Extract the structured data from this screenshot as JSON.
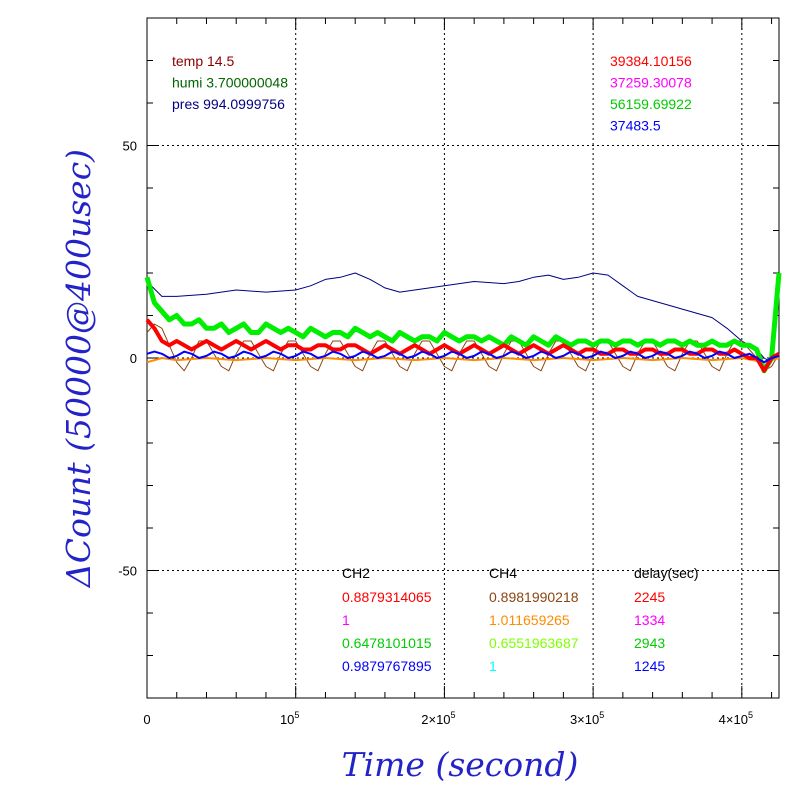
{
  "chart_data": {
    "type": "line",
    "title": "",
    "xlabel": "Time (second)",
    "ylabel": "ΔCount (50000@400usec)",
    "xlim": [
      0,
      425000
    ],
    "ylim": [
      -80,
      80
    ],
    "grid": true,
    "x_ticks": [
      {
        "value": 0,
        "base": "0",
        "exp": ""
      },
      {
        "value": 100000,
        "base": "10",
        "exp": "5"
      },
      {
        "value": 200000,
        "base": "2×10",
        "exp": "5"
      },
      {
        "value": 300000,
        "base": "3×10",
        "exp": "5"
      },
      {
        "value": 400000,
        "base": "4×10",
        "exp": "5"
      }
    ],
    "y_ticks": [
      {
        "value": 50,
        "label": "50"
      },
      {
        "value": 0,
        "label": "0"
      },
      {
        "value": -50,
        "label": "-50"
      }
    ],
    "env_labels": [
      {
        "text": "temp 14.5",
        "color": "#8b0000"
      },
      {
        "text": "humi 3.700000048",
        "color": "#006400"
      },
      {
        "text": "pres 994.0999756",
        "color": "#000080"
      }
    ],
    "count_labels": [
      {
        "text": "39384.10156",
        "color": "#ff0000"
      },
      {
        "text": "37259.30078",
        "color": "#ff00ff"
      },
      {
        "text": "56159.69922",
        "color": "#00cc00"
      },
      {
        "text": "37483.5",
        "color": "#0000ff"
      }
    ],
    "calib_table": {
      "headers": [
        "CH2",
        "CH4",
        "delay(sec)"
      ],
      "rows": [
        {
          "ch2": "0.8879314065",
          "ch2_color": "#ff0000",
          "ch4": "0.8981990218",
          "ch4_color": "#8b4513",
          "delay": "2245",
          "delay_color": "#ff0000"
        },
        {
          "ch2": "1",
          "ch2_color": "#ff00ff",
          "ch4": "1.011659265",
          "ch4_color": "#ff8c00",
          "delay": "1334",
          "delay_color": "#ff00ff"
        },
        {
          "ch2": "0.6478101015",
          "ch2_color": "#00cc00",
          "ch4": "0.6551963687",
          "ch4_color": "#7fff00",
          "delay": "2943",
          "delay_color": "#00cc00"
        },
        {
          "ch2": "0.9879767895",
          "ch2_color": "#0000ff",
          "ch4": "1",
          "ch4_color": "#00ffff",
          "delay": "1245",
          "delay_color": "#0000ff"
        }
      ]
    },
    "series": [
      {
        "color": "#000080",
        "width": 1,
        "x": [
          0,
          10000,
          20000,
          40000,
          60000,
          80000,
          100000,
          110000,
          120000,
          130000,
          140000,
          150000,
          160000,
          170000,
          180000,
          200000,
          220000,
          240000,
          250000,
          260000,
          270000,
          280000,
          290000,
          300000,
          310000,
          320000,
          330000,
          340000,
          350000,
          360000,
          370000,
          380000,
          390000,
          400000,
          410000,
          415000,
          420000,
          425000
        ],
        "y": [
          18,
          14.5,
          14.5,
          15,
          16,
          15.5,
          16,
          17,
          18.5,
          19,
          20,
          18.5,
          16.5,
          15.5,
          16,
          17,
          18,
          17.5,
          18,
          19,
          19.5,
          18.5,
          19,
          20,
          19.5,
          17,
          14.5,
          13.5,
          12.5,
          11.5,
          10.5,
          9.5,
          7,
          4,
          2,
          0,
          -1,
          20
        ]
      },
      {
        "color": "#8b4513",
        "width": 1,
        "x": [
          0,
          5000,
          10000,
          15000,
          20000,
          25000,
          30000,
          35000,
          40000,
          45000,
          50000,
          55000,
          60000,
          65000,
          70000,
          75000,
          80000,
          85000,
          90000,
          95000,
          100000,
          105000,
          110000,
          115000,
          120000,
          125000,
          130000,
          135000,
          140000,
          145000,
          150000,
          155000,
          160000,
          165000,
          170000,
          175000,
          180000,
          185000,
          190000,
          195000,
          200000,
          205000,
          210000,
          215000,
          220000,
          225000,
          230000,
          235000,
          240000,
          245000,
          250000,
          255000,
          260000,
          265000,
          270000,
          275000,
          280000,
          285000,
          290000,
          295000,
          300000,
          305000,
          310000,
          315000,
          320000,
          325000,
          330000,
          335000,
          340000,
          345000,
          350000,
          355000,
          360000,
          365000,
          370000,
          375000,
          380000,
          385000,
          390000,
          395000,
          400000,
          405000,
          410000,
          415000,
          420000,
          425000
        ],
        "y": [
          6,
          8,
          7,
          3,
          -1,
          -3,
          0,
          4,
          4,
          1,
          -2,
          -3,
          1,
          4,
          4,
          1,
          -2,
          -3,
          1,
          4,
          4,
          1,
          -2,
          -3,
          1,
          4,
          4,
          1,
          -2,
          -3,
          1,
          4,
          4,
          1,
          -2,
          -3,
          1,
          4,
          4,
          1,
          -2,
          -3,
          1,
          4,
          4,
          1,
          -2,
          -3,
          1,
          4,
          4,
          1,
          -2,
          -3,
          1,
          4,
          4,
          1,
          -2,
          -3,
          1,
          4,
          4,
          1,
          -2,
          -3,
          1,
          4,
          4,
          1,
          -2,
          -3,
          1,
          4,
          4,
          1,
          -2,
          -3,
          1,
          4,
          4,
          2,
          0,
          -3,
          -2,
          1
        ]
      },
      {
        "color": "#ff8c00",
        "width": 2,
        "x": [
          0,
          10000,
          20000,
          40000,
          60000,
          80000,
          100000,
          120000,
          140000,
          160000,
          180000,
          200000,
          220000,
          240000,
          260000,
          280000,
          300000,
          320000,
          340000,
          360000,
          380000,
          400000,
          415000,
          425000
        ],
        "y": [
          -1,
          0,
          -0.5,
          0,
          -0.5,
          0,
          -0.5,
          0,
          -0.5,
          0,
          -0.5,
          0,
          -0.5,
          0,
          -0.5,
          0,
          -0.5,
          0,
          -0.5,
          0,
          -0.5,
          0,
          -1,
          0
        ]
      },
      {
        "color": "#00ee00",
        "width": 5,
        "x": [
          0,
          5000,
          10000,
          15000,
          20000,
          25000,
          30000,
          35000,
          40000,
          45000,
          50000,
          55000,
          60000,
          65000,
          70000,
          75000,
          80000,
          85000,
          90000,
          95000,
          100000,
          105000,
          110000,
          115000,
          120000,
          125000,
          130000,
          135000,
          140000,
          145000,
          150000,
          155000,
          160000,
          165000,
          170000,
          175000,
          180000,
          185000,
          190000,
          195000,
          200000,
          205000,
          210000,
          215000,
          220000,
          225000,
          230000,
          235000,
          240000,
          245000,
          250000,
          255000,
          260000,
          265000,
          270000,
          275000,
          280000,
          285000,
          290000,
          295000,
          300000,
          305000,
          310000,
          315000,
          320000,
          325000,
          330000,
          335000,
          340000,
          345000,
          350000,
          355000,
          360000,
          365000,
          370000,
          375000,
          380000,
          385000,
          390000,
          395000,
          400000,
          405000,
          410000,
          412000,
          415000,
          420000,
          425000
        ],
        "y": [
          19,
          13,
          11,
          9,
          10,
          8,
          8,
          9,
          7,
          7,
          8,
          6,
          7,
          8,
          6,
          6,
          8,
          7,
          6,
          7,
          6,
          5,
          7,
          6,
          5,
          6,
          6,
          5,
          7,
          6,
          5,
          6,
          5,
          4,
          6,
          5,
          4,
          5,
          5,
          4,
          6,
          5,
          4,
          5,
          5,
          4,
          5,
          4,
          3,
          5,
          4,
          3,
          5,
          4,
          3,
          5,
          4,
          3,
          4,
          4,
          3,
          4,
          4,
          3,
          4,
          4,
          3,
          4,
          4,
          3,
          4,
          4,
          3,
          4,
          3,
          3,
          4,
          3,
          3,
          4,
          3,
          3,
          2,
          0,
          -3,
          0,
          20
        ]
      },
      {
        "color": "#ff0000",
        "width": 4,
        "x": [
          0,
          5000,
          10000,
          15000,
          20000,
          25000,
          30000,
          35000,
          40000,
          45000,
          50000,
          55000,
          60000,
          65000,
          70000,
          75000,
          80000,
          85000,
          90000,
          95000,
          100000,
          105000,
          110000,
          115000,
          120000,
          125000,
          130000,
          135000,
          140000,
          145000,
          150000,
          155000,
          160000,
          165000,
          170000,
          175000,
          180000,
          185000,
          190000,
          195000,
          200000,
          205000,
          210000,
          215000,
          220000,
          225000,
          230000,
          235000,
          240000,
          245000,
          250000,
          255000,
          260000,
          265000,
          270000,
          275000,
          280000,
          285000,
          290000,
          295000,
          300000,
          305000,
          310000,
          315000,
          320000,
          325000,
          330000,
          335000,
          340000,
          345000,
          350000,
          355000,
          360000,
          365000,
          370000,
          375000,
          380000,
          385000,
          390000,
          395000,
          400000,
          405000,
          410000,
          415000,
          420000,
          425000
        ],
        "y": [
          9,
          7,
          4,
          3,
          4,
          3,
          2,
          3,
          4,
          3,
          2,
          3,
          4,
          3,
          2,
          3,
          4,
          3,
          2,
          3,
          3,
          2,
          2,
          3,
          3,
          2,
          2,
          3,
          3,
          2,
          1,
          2,
          3,
          2,
          1,
          2,
          3,
          2,
          1,
          2,
          3,
          2,
          1,
          2,
          3,
          2,
          1,
          2,
          3,
          2,
          1,
          2,
          3,
          2,
          1,
          2,
          3,
          2,
          1,
          2,
          2,
          1,
          1,
          2,
          2,
          1,
          1,
          2,
          2,
          1,
          1,
          2,
          2,
          1,
          1,
          2,
          2,
          1,
          1,
          2,
          1,
          0,
          0,
          -3,
          0,
          1
        ]
      },
      {
        "color": "#0000ff",
        "width": 2,
        "x": [
          0,
          5000,
          10000,
          15000,
          20000,
          25000,
          30000,
          35000,
          40000,
          45000,
          50000,
          55000,
          60000,
          65000,
          70000,
          75000,
          80000,
          85000,
          90000,
          95000,
          100000,
          105000,
          110000,
          115000,
          120000,
          125000,
          130000,
          135000,
          140000,
          145000,
          150000,
          155000,
          160000,
          165000,
          170000,
          175000,
          180000,
          185000,
          190000,
          195000,
          200000,
          205000,
          210000,
          215000,
          220000,
          225000,
          230000,
          235000,
          240000,
          245000,
          250000,
          255000,
          260000,
          265000,
          270000,
          275000,
          280000,
          285000,
          290000,
          295000,
          300000,
          305000,
          310000,
          315000,
          320000,
          325000,
          330000,
          335000,
          340000,
          345000,
          350000,
          355000,
          360000,
          365000,
          370000,
          375000,
          380000,
          385000,
          390000,
          395000,
          400000,
          405000,
          410000,
          415000,
          420000,
          425000
        ],
        "y": [
          1,
          1.5,
          1,
          0,
          0.5,
          1.5,
          1,
          0,
          0.5,
          1.5,
          1,
          0,
          0.5,
          1.5,
          1,
          0,
          0.5,
          1.5,
          1,
          0,
          0.5,
          1.5,
          1,
          0,
          0.5,
          1.5,
          1,
          0,
          0.5,
          1.5,
          1,
          0,
          0.5,
          1.5,
          1,
          0,
          0.5,
          1.5,
          1,
          0,
          0.5,
          1.5,
          1,
          0,
          0.5,
          1.5,
          1,
          0,
          0.5,
          1.5,
          1,
          0,
          0.5,
          1.5,
          1,
          0,
          0.5,
          1.5,
          1,
          0,
          0.5,
          1.5,
          1,
          0,
          0.5,
          1.5,
          1,
          0,
          0.5,
          1.5,
          1,
          0,
          0.5,
          1.5,
          1,
          0,
          0.5,
          1.5,
          1,
          0,
          0.5,
          1,
          0,
          -1,
          0,
          0.5
        ]
      }
    ]
  }
}
